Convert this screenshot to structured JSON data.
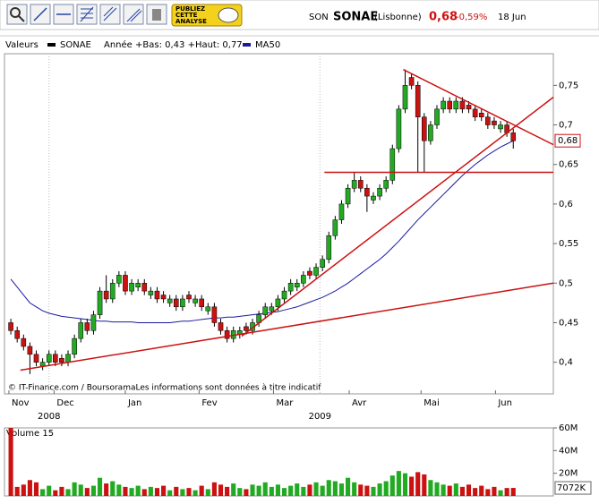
{
  "header": {
    "code": "SON",
    "name": "SONAE",
    "market": "(Lisbonne)",
    "price": "0,68",
    "change": "-0,59%",
    "date": "18 Jun"
  },
  "toolbar": {
    "publish": [
      "PUBLIEZ",
      "CETTE",
      "ANALYSE"
    ]
  },
  "chart_data": [
    {
      "type": "candlestick",
      "legend_title": "Valeurs",
      "range_text": "Année +Bas: 0,43 +Haut: 0,77",
      "source": "© IT-Finance.com / BoursoramaLes informations sont données à titre indicatif",
      "categories": [
        null,
        null,
        null,
        null,
        null,
        null,
        null,
        null,
        null,
        null,
        null,
        null,
        null,
        null,
        null,
        null,
        null,
        null,
        null,
        null,
        null,
        null,
        null,
        null,
        null,
        null,
        null,
        null,
        null,
        null,
        null,
        null,
        null,
        null,
        null,
        null,
        null,
        null,
        null,
        null,
        null,
        null,
        null,
        null,
        null,
        null,
        null,
        null,
        null,
        null,
        null,
        null,
        null,
        null,
        null,
        null,
        null,
        null,
        null,
        null,
        null,
        null,
        null,
        null,
        null,
        null,
        null,
        null,
        null,
        null,
        null,
        null,
        null,
        null,
        null,
        null,
        null,
        null,
        null,
        null
      ],
      "series": [
        {
          "name": "SONAE",
          "color": "#000000",
          "up_color": "#22aa22",
          "down_color": "#cc1111",
          "open": [
            0.45,
            0.44,
            0.43,
            0.42,
            0.41,
            0.395,
            0.4,
            0.41,
            0.405,
            0.4,
            0.41,
            0.43,
            0.45,
            0.44,
            0.46,
            0.49,
            0.48,
            0.5,
            0.51,
            0.49,
            0.495,
            0.5,
            0.485,
            0.49,
            0.485,
            0.475,
            0.48,
            0.47,
            0.485,
            0.475,
            0.48,
            0.465,
            0.47,
            0.45,
            0.44,
            0.43,
            0.435,
            0.445,
            0.44,
            0.45,
            0.46,
            0.465,
            0.47,
            0.48,
            0.49,
            0.495,
            0.5,
            0.515,
            0.51,
            0.52,
            0.53,
            0.56,
            0.58,
            0.6,
            0.62,
            0.63,
            0.62,
            0.605,
            0.61,
            0.62,
            0.63,
            0.67,
            0.72,
            0.76,
            0.75,
            0.71,
            0.68,
            0.7,
            0.72,
            0.73,
            0.72,
            0.73,
            0.725,
            0.72,
            0.715,
            0.71,
            0.705,
            0.695,
            0.7,
            0.69
          ],
          "high": [
            0.455,
            0.445,
            0.435,
            0.425,
            0.415,
            0.405,
            0.415,
            0.415,
            0.41,
            0.415,
            0.435,
            0.455,
            0.455,
            0.465,
            0.495,
            0.51,
            0.505,
            0.515,
            0.515,
            0.505,
            0.505,
            0.505,
            0.495,
            0.495,
            0.49,
            0.485,
            0.485,
            0.485,
            0.49,
            0.485,
            0.485,
            0.475,
            0.475,
            0.455,
            0.445,
            0.445,
            0.445,
            0.45,
            0.455,
            0.465,
            0.475,
            0.475,
            0.485,
            0.495,
            0.505,
            0.505,
            0.515,
            0.52,
            0.525,
            0.535,
            0.565,
            0.585,
            0.605,
            0.625,
            0.64,
            0.635,
            0.625,
            0.615,
            0.625,
            0.635,
            0.675,
            0.725,
            0.77,
            0.765,
            0.755,
            0.715,
            0.705,
            0.725,
            0.735,
            0.735,
            0.735,
            0.735,
            0.73,
            0.725,
            0.72,
            0.715,
            0.71,
            0.705,
            0.705,
            0.695
          ],
          "low": [
            0.435,
            0.425,
            0.415,
            0.385,
            0.395,
            0.39,
            0.395,
            0.395,
            0.395,
            0.395,
            0.405,
            0.425,
            0.435,
            0.435,
            0.455,
            0.475,
            0.475,
            0.495,
            0.485,
            0.485,
            0.49,
            0.485,
            0.48,
            0.475,
            0.475,
            0.47,
            0.465,
            0.465,
            0.475,
            0.47,
            0.465,
            0.46,
            0.445,
            0.435,
            0.425,
            0.425,
            0.43,
            0.435,
            0.435,
            0.445,
            0.455,
            0.46,
            0.465,
            0.475,
            0.485,
            0.49,
            0.495,
            0.505,
            0.505,
            0.515,
            0.525,
            0.555,
            0.575,
            0.595,
            0.615,
            0.615,
            0.59,
            0.6,
            0.605,
            0.615,
            0.625,
            0.665,
            0.715,
            0.745,
            0.64,
            0.64,
            0.675,
            0.695,
            0.715,
            0.715,
            0.715,
            0.715,
            0.715,
            0.705,
            0.705,
            0.695,
            0.695,
            0.69,
            0.685,
            0.67
          ],
          "close": [
            0.44,
            0.43,
            0.42,
            0.41,
            0.4,
            0.4,
            0.41,
            0.4,
            0.4,
            0.41,
            0.43,
            0.45,
            0.44,
            0.46,
            0.49,
            0.48,
            0.5,
            0.51,
            0.49,
            0.5,
            0.5,
            0.49,
            0.49,
            0.48,
            0.48,
            0.48,
            0.47,
            0.48,
            0.48,
            0.48,
            0.47,
            0.47,
            0.45,
            0.44,
            0.43,
            0.44,
            0.44,
            0.44,
            0.45,
            0.46,
            0.47,
            0.47,
            0.48,
            0.49,
            0.5,
            0.5,
            0.51,
            0.51,
            0.52,
            0.53,
            0.56,
            0.58,
            0.6,
            0.62,
            0.63,
            0.62,
            0.61,
            0.61,
            0.62,
            0.63,
            0.67,
            0.72,
            0.75,
            0.75,
            0.71,
            0.68,
            0.7,
            0.72,
            0.73,
            0.72,
            0.73,
            0.72,
            0.72,
            0.71,
            0.71,
            0.7,
            0.7,
            0.7,
            0.69,
            0.68
          ]
        },
        {
          "name": "MA50",
          "color": "#1a1aa0",
          "values": [
            0.505,
            0.495,
            0.485,
            0.475,
            0.47,
            0.465,
            0.462,
            0.46,
            0.458,
            0.457,
            0.456,
            0.455,
            0.454,
            0.453,
            0.452,
            0.452,
            0.451,
            0.451,
            0.451,
            0.451,
            0.45,
            0.45,
            0.45,
            0.45,
            0.45,
            0.45,
            0.451,
            0.452,
            0.452,
            0.453,
            0.454,
            0.455,
            0.456,
            0.456,
            0.457,
            0.457,
            0.458,
            0.459,
            0.46,
            0.461,
            0.462,
            0.463,
            0.464,
            0.466,
            0.468,
            0.47,
            0.473,
            0.476,
            0.479,
            0.482,
            0.486,
            0.49,
            0.495,
            0.5,
            0.506,
            0.512,
            0.518,
            0.524,
            0.53,
            0.537,
            0.545,
            0.553,
            0.562,
            0.571,
            0.58,
            0.588,
            0.596,
            0.604,
            0.612,
            0.62,
            0.628,
            0.636,
            0.643,
            0.65,
            0.656,
            0.662,
            0.667,
            0.672,
            0.676,
            0.68
          ]
        }
      ],
      "trendlines": [
        {
          "color": "#cc1111",
          "x": [
            1.5,
            85.3
          ],
          "y": [
            0.39,
            0.5
          ]
        },
        {
          "color": "#cc1111",
          "x": [
            36.3,
            85.3
          ],
          "y": [
            0.433,
            0.735
          ]
        },
        {
          "color": "#cc1111",
          "x": [
            61.7,
            85.3
          ],
          "y": [
            0.77,
            0.675
          ]
        },
        {
          "color": "#cc1111",
          "x": [
            49.3,
            85.3
          ],
          "y": [
            0.64,
            0.64
          ]
        }
      ],
      "last_label": "0,68",
      "xlim": [
        -1,
        85.3
      ],
      "xticks": [
        {
          "value": -0.3,
          "label": "Nov"
        },
        {
          "value": 6.8,
          "label": "Dec"
        },
        {
          "value": 18,
          "label": "Jan"
        },
        {
          "value": 29.6,
          "label": "Fev"
        },
        {
          "value": 41.3,
          "label": "Mar"
        },
        {
          "value": 53.2,
          "label": "Avr"
        },
        {
          "value": 64.5,
          "label": "Mai"
        },
        {
          "value": 76.2,
          "label": "Jun"
        }
      ],
      "year_ticks": [
        {
          "value": 6,
          "label": "2008"
        },
        {
          "value": 48.6,
          "label": "2009"
        }
      ],
      "ylim": [
        0.36,
        0.79
      ],
      "yticks": [
        {
          "value": 0.4,
          "label": "0,4"
        },
        {
          "value": 0.45,
          "label": "0,45"
        },
        {
          "value": 0.5,
          "label": "0,5"
        },
        {
          "value": 0.55,
          "label": "0,55"
        },
        {
          "value": 0.6,
          "label": "0,6"
        },
        {
          "value": 0.65,
          "label": "0,65"
        },
        {
          "value": 0.7,
          "label": "0,7"
        },
        {
          "value": 0.75,
          "label": "0,75"
        }
      ],
      "grid": false
    },
    {
      "type": "bar",
      "title": "Volume 15",
      "categories": [
        null,
        null,
        null,
        null,
        null,
        null,
        null,
        null,
        null,
        null,
        null,
        null,
        null,
        null,
        null,
        null,
        null,
        null,
        null,
        null,
        null,
        null,
        null,
        null,
        null,
        null,
        null,
        null,
        null,
        null,
        null,
        null,
        null,
        null,
        null,
        null,
        null,
        null,
        null,
        null,
        null,
        null,
        null,
        null,
        null,
        null,
        null,
        null,
        null,
        null,
        null,
        null,
        null,
        null,
        null,
        null,
        null,
        null,
        null,
        null,
        null,
        null,
        null,
        null,
        null,
        null,
        null,
        null,
        null,
        null,
        null,
        null,
        null,
        null,
        null,
        null,
        null,
        null,
        null,
        null
      ],
      "values": [
        60,
        8,
        10,
        14,
        12,
        6,
        9,
        5,
        8,
        6,
        12,
        10,
        7,
        9,
        16,
        11,
        13,
        10,
        8,
        7,
        9,
        6,
        8,
        7,
        9,
        5,
        8,
        6,
        7,
        5,
        9,
        6,
        12,
        10,
        8,
        11,
        7,
        6,
        10,
        9,
        12,
        8,
        10,
        7,
        9,
        11,
        8,
        10,
        12,
        9,
        14,
        13,
        11,
        16,
        12,
        10,
        9,
        8,
        11,
        13,
        18,
        22,
        20,
        17,
        21,
        19,
        14,
        12,
        10,
        9,
        11,
        8,
        10,
        7,
        9,
        6,
        8,
        5,
        7,
        7.072
      ],
      "last_label": "7072K",
      "xlim": [
        -1,
        85.3
      ],
      "ylim": [
        0,
        60
      ],
      "yticks": [
        {
          "value": 20,
          "label": "20M"
        },
        {
          "value": 40,
          "label": "40M"
        },
        {
          "value": 60,
          "label": "60M"
        }
      ]
    }
  ]
}
